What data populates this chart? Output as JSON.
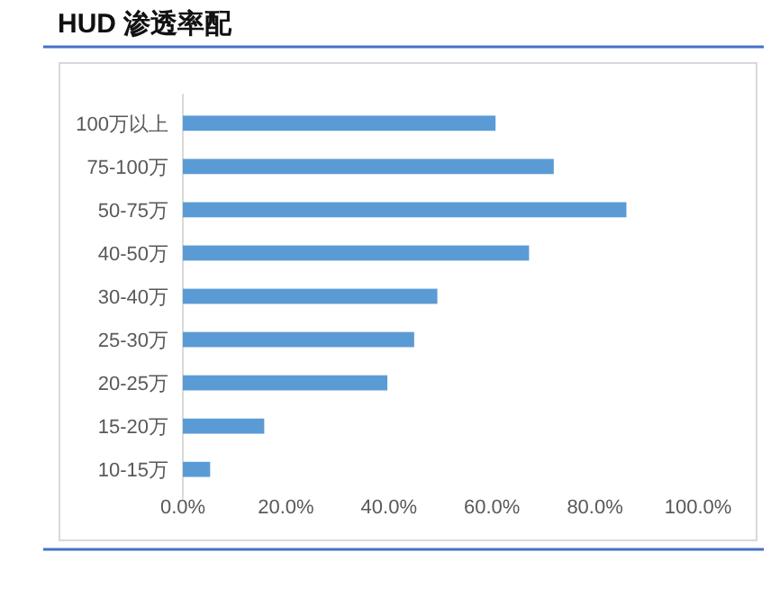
{
  "chart_data": {
    "type": "bar",
    "orientation": "horizontal",
    "title": "HUD 渗透率配",
    "categories": [
      "100万以上",
      "75-100万",
      "50-75万",
      "40-50万",
      "30-40万",
      "25-30万",
      "20-25万",
      "15-20万",
      "10-15万"
    ],
    "values": [
      60.7,
      72.0,
      86.1,
      67.2,
      49.4,
      44.9,
      39.7,
      15.8,
      5.3
    ],
    "color": "#5b9bd5",
    "xlim": [
      0,
      100
    ],
    "xticks": [
      {
        "value": 0,
        "label": "0.0%"
      },
      {
        "value": 20,
        "label": "20.0%"
      },
      {
        "value": 40,
        "label": "40.0%"
      },
      {
        "value": 60,
        "label": "60.0%"
      },
      {
        "value": 80,
        "label": "80.0%"
      },
      {
        "value": 100,
        "label": "100.0%"
      }
    ],
    "grid": false
  }
}
